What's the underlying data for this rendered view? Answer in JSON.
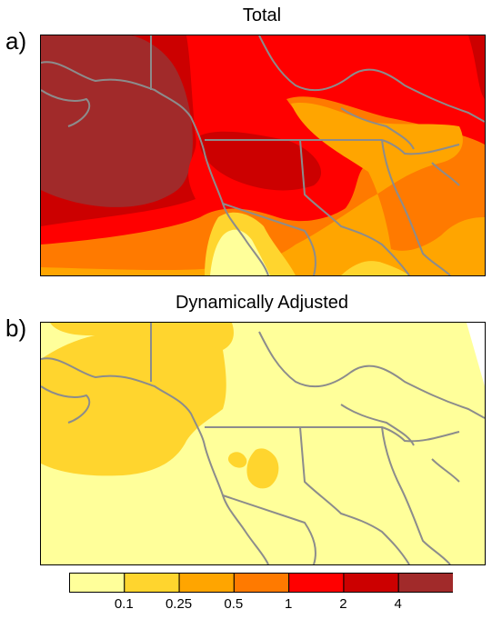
{
  "panels": [
    {
      "letter": "a)",
      "title": "Total"
    },
    {
      "letter": "b)",
      "title": "Dynamically Adjusted"
    }
  ],
  "colorbar": {
    "ticks": [
      "0.1",
      "0.25",
      "0.5",
      "1",
      "2",
      "4"
    ],
    "colors": [
      "#ffff9a",
      "#ffd52e",
      "#ffa500",
      "#ff7a00",
      "#ff0000",
      "#cc0000",
      "#a12a2a"
    ]
  },
  "coastline_color": "#8c8c8c"
}
